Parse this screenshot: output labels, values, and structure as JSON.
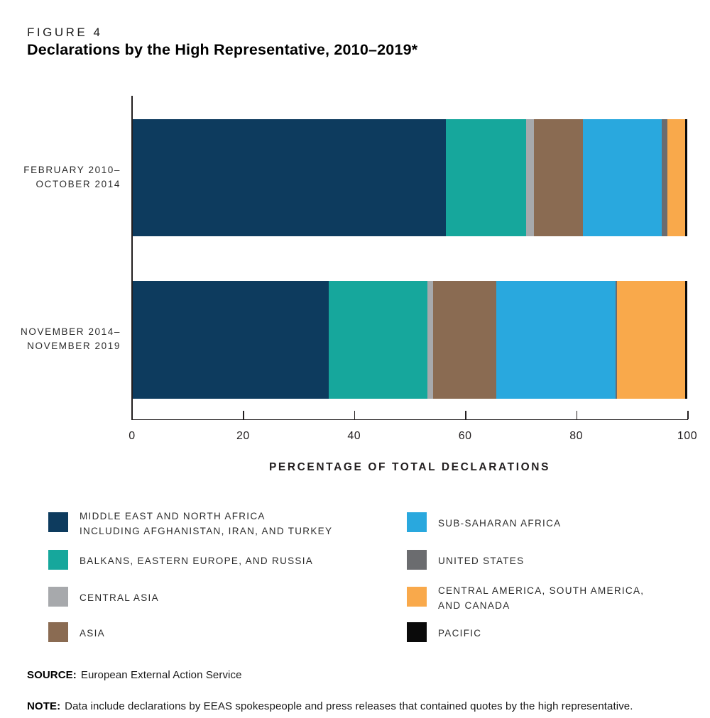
{
  "figure": {
    "label": "FIGURE 4",
    "title": "Declarations by the High Representative, 2010–2019*"
  },
  "chart_data": {
    "type": "bar",
    "orientation": "horizontal",
    "stacked": true,
    "categories": [
      [
        "FEBRUARY 2010–",
        "OCTOBER 2014"
      ],
      [
        "NOVEMBER 2014–",
        "NOVEMBER 2019"
      ]
    ],
    "series": [
      {
        "name": "Middle East and North Africa including Afghanistan, Iran, and Turkey",
        "color": "#0d3b5e",
        "values": [
          56.5,
          35.3
        ]
      },
      {
        "name": "Balkans, Eastern Europe, and Russia",
        "color": "#16a79c",
        "values": [
          14.4,
          17.8
        ]
      },
      {
        "name": "Central Asia",
        "color": "#a7a9ac",
        "values": [
          1.4,
          1.0
        ]
      },
      {
        "name": "Asia",
        "color": "#8a6b52",
        "values": [
          8.9,
          11.5
        ]
      },
      {
        "name": "Sub-Saharan Africa",
        "color": "#29a8de",
        "values": [
          14.1,
          21.4
        ]
      },
      {
        "name": "United States",
        "color": "#6b6c6f",
        "values": [
          1.1,
          0.3
        ]
      },
      {
        "name": "Central America, South America, and Canada",
        "color": "#f9a94b",
        "values": [
          3.2,
          12.2
        ]
      },
      {
        "name": "Pacific",
        "color": "#0a0a0a",
        "values": [
          0.4,
          0.5
        ]
      }
    ],
    "xlabel": "PERCENTAGE OF TOTAL DECLARATIONS",
    "xticks": [
      0,
      20,
      40,
      60,
      80,
      100
    ],
    "xlim": [
      0,
      100
    ],
    "grid": false,
    "legend_position": "bottom"
  },
  "legend": {
    "left_column": [
      {
        "color": "#0d3b5e",
        "lines": [
          "MIDDLE EAST AND NORTH AFRICA",
          "INCLUDING AFGHANISTAN, IRAN, AND TURKEY"
        ]
      },
      {
        "color": "#16a79c",
        "lines": [
          "BALKANS, EASTERN EUROPE, AND RUSSIA"
        ]
      },
      {
        "color": "#a7a9ac",
        "lines": [
          "CENTRAL ASIA"
        ]
      },
      {
        "color": "#8a6b52",
        "lines": [
          "ASIA"
        ]
      }
    ],
    "right_column": [
      {
        "color": "#29a8de",
        "lines": [
          "SUB-SAHARAN AFRICA"
        ]
      },
      {
        "color": "#6b6c6f",
        "lines": [
          "UNITED STATES"
        ]
      },
      {
        "color": "#f9a94b",
        "lines": [
          "CENTRAL AMERICA, SOUTH AMERICA,",
          "AND CANADA"
        ]
      },
      {
        "color": "#0a0a0a",
        "lines": [
          "PACIFIC"
        ]
      }
    ]
  },
  "source": {
    "label": "SOURCE:",
    "text": "European External Action Service"
  },
  "note": {
    "label": "NOTE:",
    "text": "Data include declarations by EEAS spokespeople and press releases that contained quotes by the high representative."
  }
}
